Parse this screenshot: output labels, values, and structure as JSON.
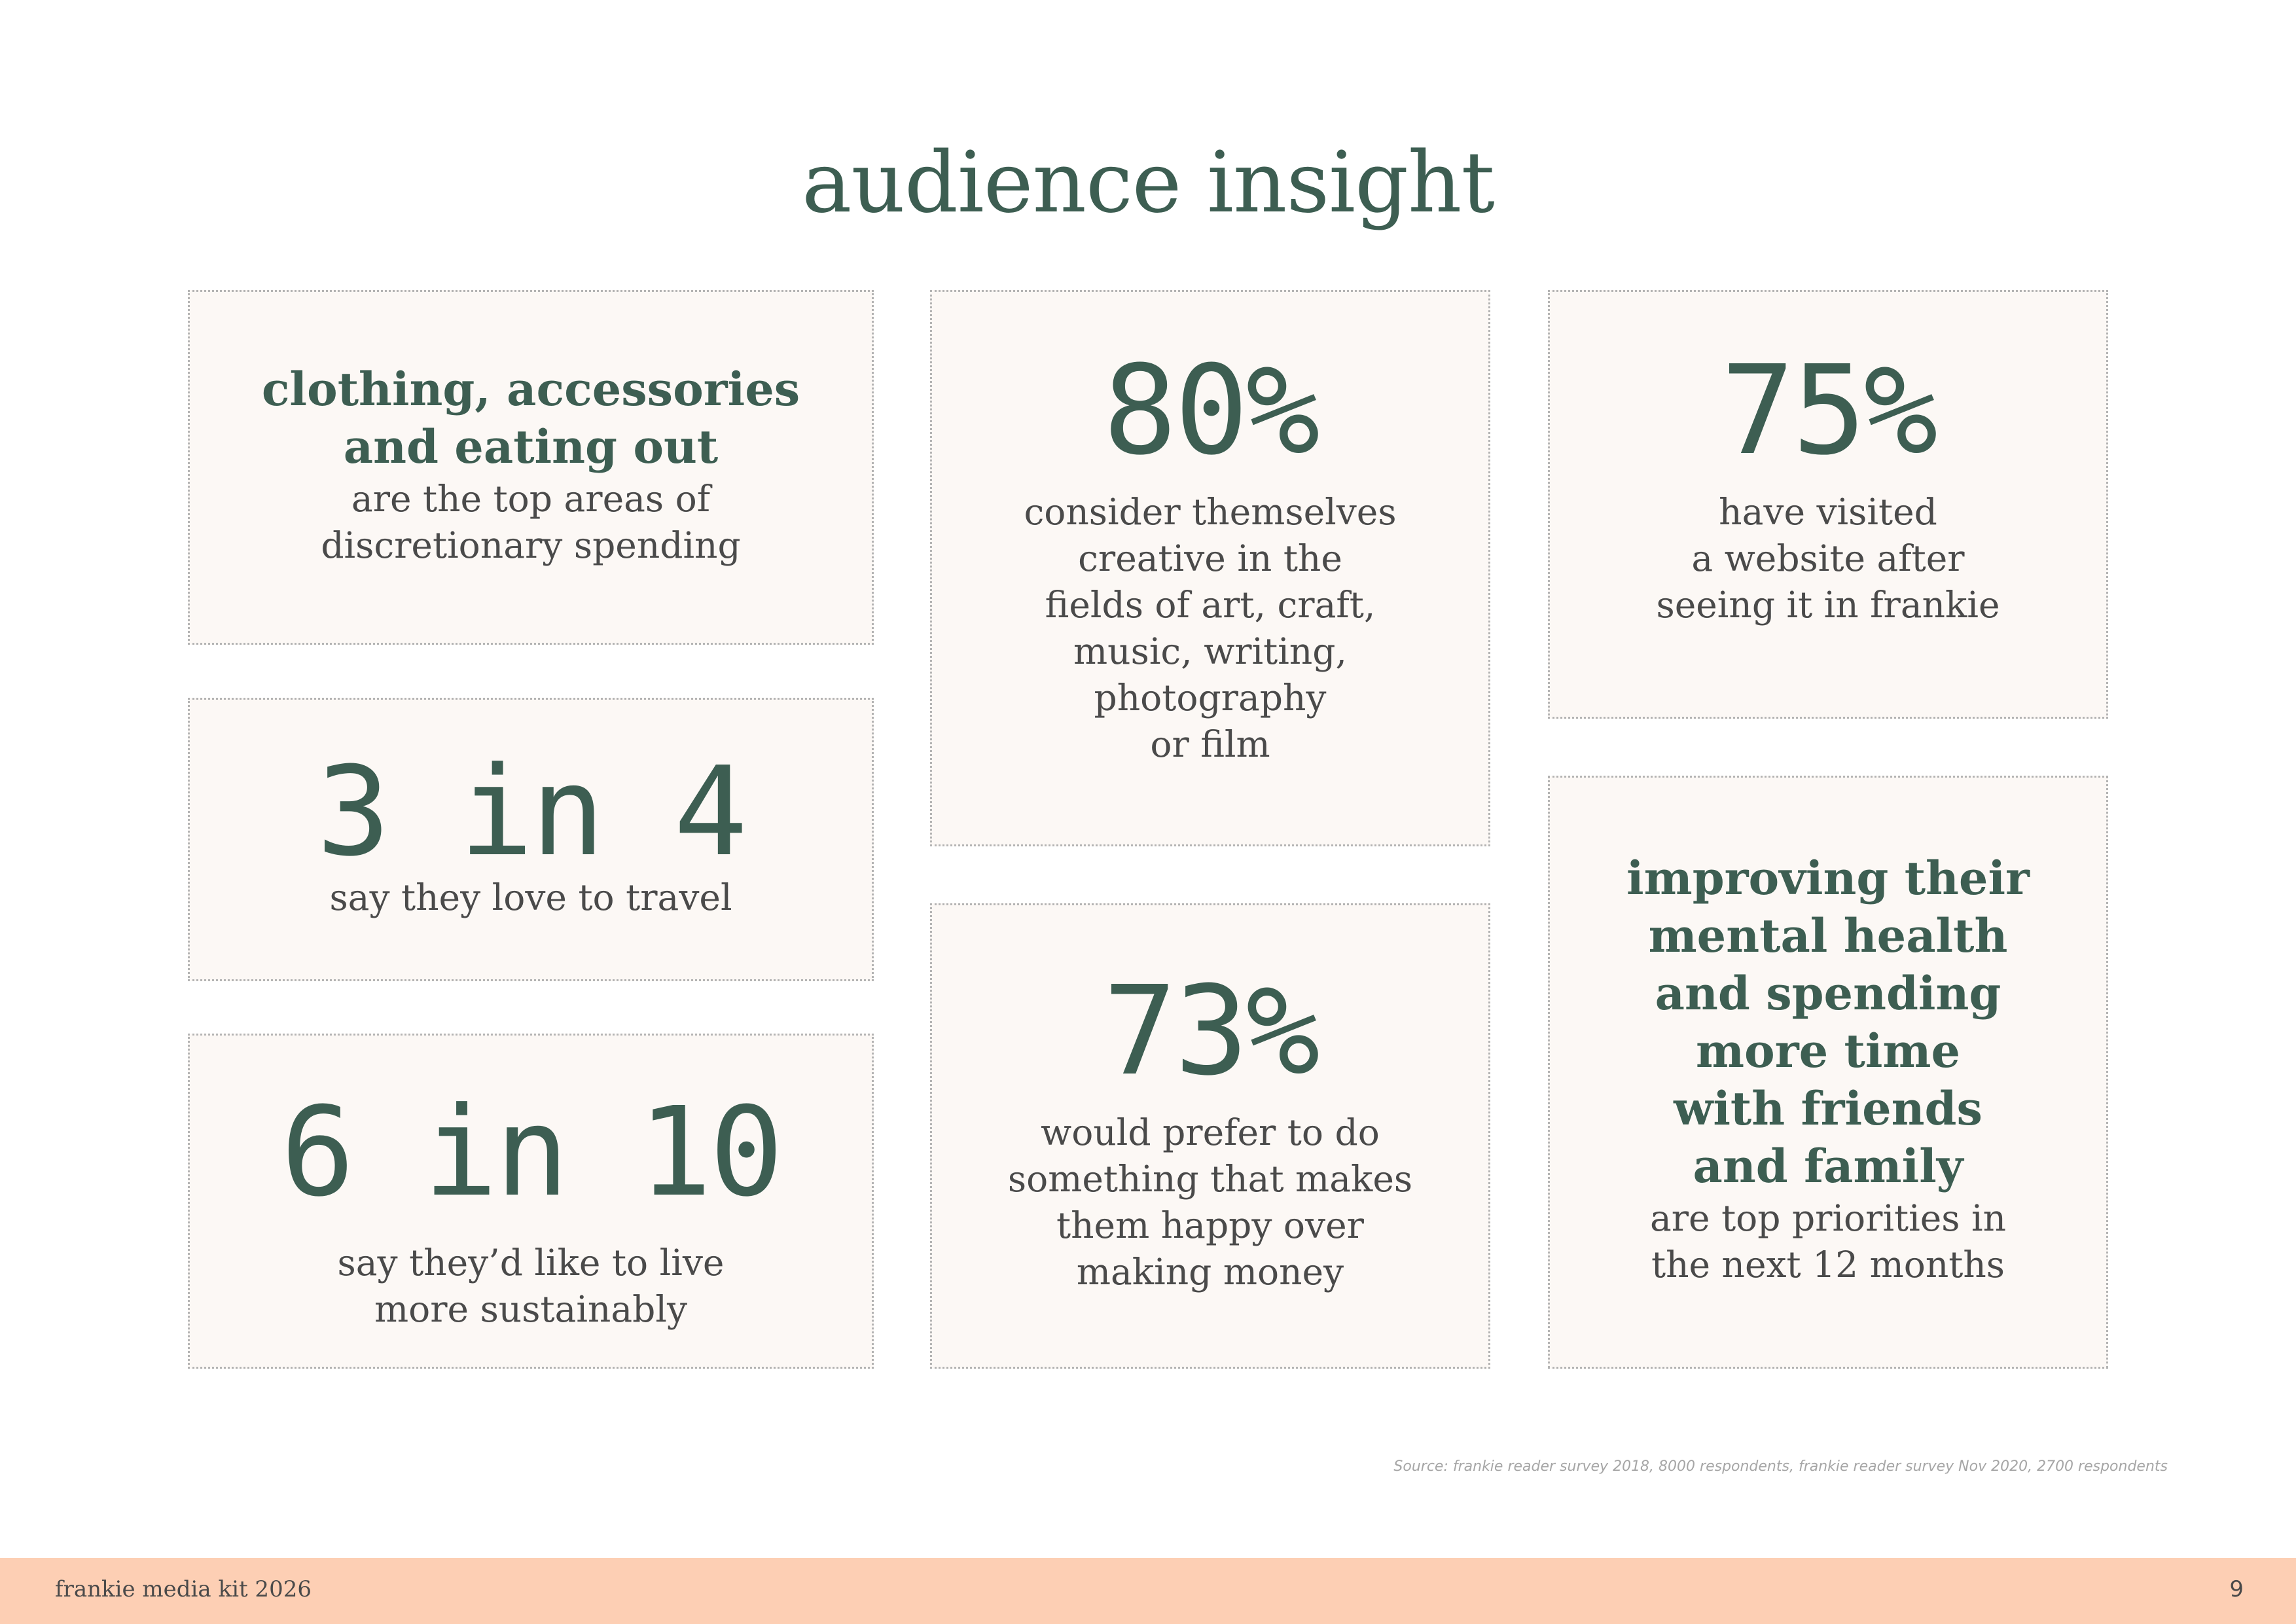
{
  "page": {
    "title": "audience insight"
  },
  "cards": {
    "spending": {
      "headline": "clothing, accessories\nand eating out",
      "description": "are the top areas of\ndiscretionary spending"
    },
    "creative": {
      "stat": "80%",
      "description": "consider themselves\ncreative in the\nfields of art, craft,\nmusic, writing,\nphotography\nor film"
    },
    "website": {
      "stat": "75%",
      "description": "have visited\na website after\nseeing it in frankie"
    },
    "travel": {
      "stat": "3 in 4",
      "description": "say they love to travel"
    },
    "sustainable": {
      "stat": "6 in 10",
      "description": "say they’d like to live\nmore sustainably"
    },
    "happy": {
      "stat": "73%",
      "description": "would prefer to do\nsomething that makes\nthem happy over\nmaking money"
    },
    "priorities": {
      "headline": "improving their\nmental health\nand spending\nmore time\nwith friends\nand family",
      "description": "are top priorities in\nthe next 12 months"
    }
  },
  "source": "Source: frankie reader survey 2018, 8000 respondents, frankie reader survey Nov 2020, 2700 respondents",
  "footer": {
    "left_text": "frankie media kit 2026",
    "page_number": "9"
  },
  "colors": {
    "accent_green": "#3d5e52",
    "card_background": "#fcf8f5",
    "footer_band": "#fdcfb4"
  }
}
